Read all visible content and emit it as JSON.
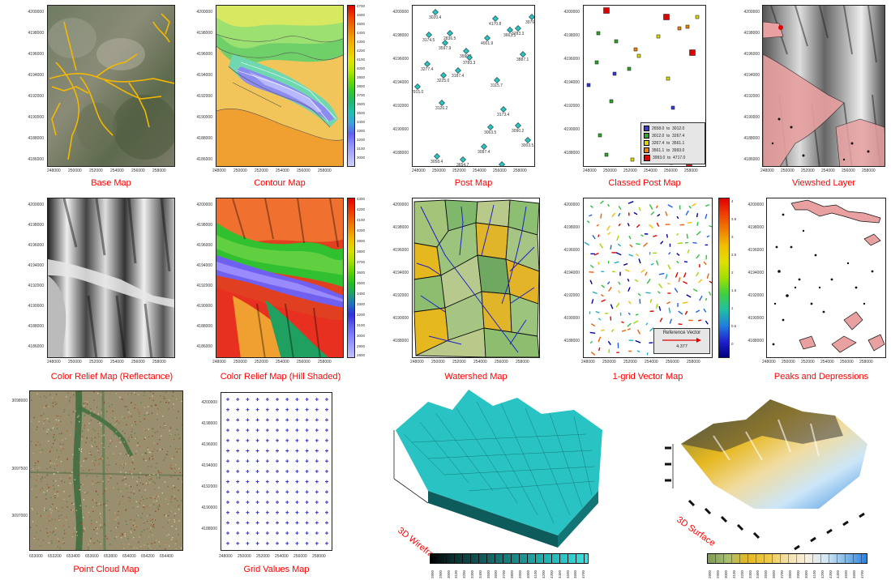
{
  "captions": {
    "base_map": "Base Map",
    "contour_map": "Contour Map",
    "post_map": "Post Map",
    "classed_post_map": "Classed Post Map",
    "viewshed_layer": "Viewshed Layer",
    "color_relief_reflectance": "Color Relief Map (Reflectance)",
    "color_relief_hill_shaded": "Color Relief Map (Hill Shaded)",
    "watershed_map": "Watershed Map",
    "vector_map": "1-grid Vector Map",
    "peaks_depressions": "Peaks and Depressions",
    "point_cloud_map": "Point Cloud Map",
    "grid_values_map": "Grid Values Map",
    "wireframe_3d": "3D Wireframe",
    "surface_3d": "3D Surface"
  },
  "axes": {
    "y_ticks": [
      "4200000",
      "4198000",
      "4196000",
      "4194000",
      "4192000",
      "4190000",
      "4188000",
      "4186000"
    ],
    "x_ticks": [
      "248000",
      "250000",
      "252000",
      "254000",
      "256000",
      "258000"
    ],
    "y_ticks_post": [
      "4200000",
      "4198000",
      "4196000",
      "4194000",
      "4192000",
      "4190000",
      "4188000",
      "4186000"
    ],
    "x_ticks_post": [
      "248000",
      "250000",
      "252000",
      "254000",
      "256000",
      "258000"
    ],
    "point_cloud_y": [
      "3098000",
      "3097500",
      "3097000"
    ],
    "point_cloud_x": [
      "653000",
      "653200",
      "653400",
      "653600",
      "653800",
      "654000",
      "654200",
      "654400"
    ]
  },
  "legend_contour": [
    "4700",
    "4600",
    "4500",
    "4400",
    "4300",
    "4200",
    "4100",
    "4000",
    "3900",
    "3800",
    "3700",
    "3600",
    "3500",
    "3400",
    "3300",
    "3200",
    "3100",
    "3000"
  ],
  "legend_hill": [
    "4300",
    "4200",
    "4100",
    "4000",
    "3900",
    "3800",
    "3700",
    "3600",
    "3500",
    "3400",
    "3300",
    "3200",
    "3100",
    "3000",
    "2900",
    "2800"
  ],
  "legend_vector": [
    "4",
    "3.5",
    "3",
    "2.5",
    "2",
    "1.5",
    "1",
    "0.5",
    "0"
  ],
  "post_values": [
    "3020.4",
    "4170.8",
    "3976.8",
    "3783.3",
    "4001.9",
    "3990.1",
    "3887.1",
    "3783.3",
    "3663.5",
    "3597.9",
    "3174.5",
    "3277.4",
    "3225.0",
    "3187.4",
    "3115.7",
    "3126.2",
    "3173.4",
    "2915.0",
    "3003.5",
    "3087.4",
    "3058.4",
    "2889.0",
    "3090.2",
    "3063.5",
    "3654.7",
    "2836.5"
  ],
  "classed_legend": [
    {
      "label": "2658.0  to  3012.0",
      "color": "#3a3ad0"
    },
    {
      "label": "3012.0  to  3267.4",
      "color": "#2aa82a"
    },
    {
      "label": "3267.4  to  3561.1",
      "color": "#d8d800"
    },
    {
      "label": "3561.1  to  3993.0",
      "color": "#f08000"
    },
    {
      "label": "3993.0  to  4717.0",
      "color": "#e00000"
    }
  ],
  "reference_vector": {
    "title": "Reference Vector",
    "value": "4.377"
  },
  "wireframe_scale": [
    "2800",
    "2900",
    "3000",
    "3100",
    "3200",
    "3300",
    "3400",
    "3500",
    "3600",
    "3700",
    "3800",
    "3900",
    "4000",
    "4100",
    "4200",
    "4300",
    "4400",
    "4500",
    "4600",
    "4700"
  ],
  "surface_scale": [
    "2800",
    "2900",
    "3000",
    "3100",
    "3200",
    "3300",
    "3400",
    "3500",
    "3600",
    "3700",
    "3800",
    "3900",
    "4000",
    "4100",
    "4200",
    "4300",
    "4400",
    "4500",
    "4600",
    "4700"
  ],
  "colors": {
    "caption": "#ff0000",
    "road": "#f5b800",
    "accent_cyan": "#29c3c3"
  }
}
